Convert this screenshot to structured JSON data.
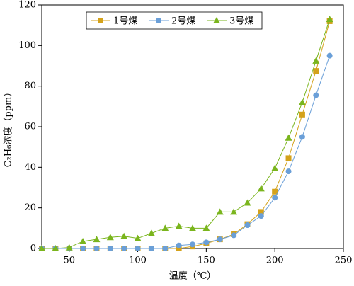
{
  "chart_data": {
    "type": "line",
    "xlabel": "温度（℃）",
    "ylabel": "C₂H₆浓度（ppm）",
    "x": [
      30,
      40,
      50,
      60,
      70,
      80,
      90,
      100,
      110,
      120,
      130,
      140,
      150,
      160,
      170,
      180,
      190,
      200,
      210,
      220,
      230,
      240
    ],
    "series": [
      {
        "name": "1号煤",
        "color": "#d4a21a",
        "marker": "square",
        "values": [
          0,
          0,
          0,
          0,
          0,
          0,
          0,
          0,
          0,
          0,
          0,
          1,
          2.5,
          4.5,
          7,
          12,
          18,
          28,
          44.5,
          66,
          87.5,
          112
        ]
      },
      {
        "name": "2号煤",
        "color": "#6a9fd8",
        "marker": "circle",
        "values": [
          0,
          0,
          0,
          0,
          0,
          0,
          0,
          0,
          0,
          0,
          1.5,
          2,
          3,
          4.5,
          6.5,
          11.5,
          16,
          25,
          38,
          55,
          75.5,
          95
        ]
      },
      {
        "name": "3号煤",
        "color": "#7ab51d",
        "marker": "triangle",
        "values": [
          0,
          0,
          0.5,
          3.5,
          4.5,
          5.5,
          6,
          5,
          7.5,
          10,
          11,
          10,
          10,
          18,
          18,
          22.5,
          29.5,
          39.5,
          54.5,
          72,
          92.5,
          113
        ]
      }
    ],
    "xlim": [
      30,
      250
    ],
    "xticks": [
      50,
      100,
      150,
      200,
      250
    ],
    "ylim": [
      0,
      120
    ],
    "yticks": [
      0,
      20,
      40,
      60,
      80,
      100,
      120
    ],
    "legend": "top-left"
  }
}
